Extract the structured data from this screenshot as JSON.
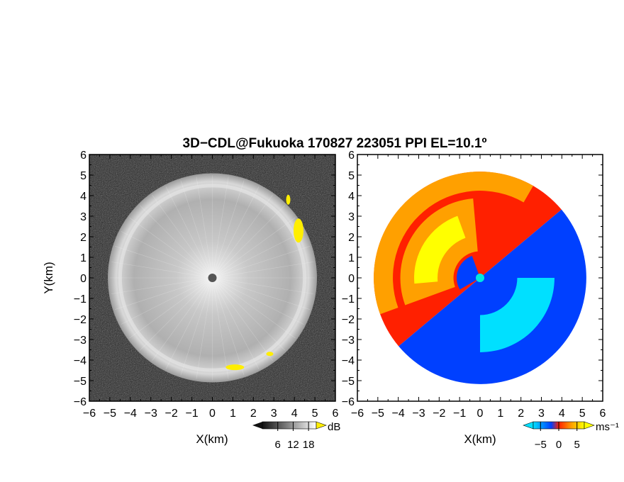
{
  "figure": {
    "title": "3D−CDL@Fukuoka 170827 223051 PPI EL=10.1º"
  },
  "chart_data": [
    {
      "type": "heatmap",
      "panel": "left",
      "field": "reflectivity",
      "xlabel": "X(km)",
      "ylabel": "Y(km)",
      "xlim": [
        -6,
        6
      ],
      "ylim": [
        -6,
        6
      ],
      "x_ticks": [
        "−6",
        "−5",
        "−4",
        "−3",
        "−2",
        "−1",
        "0",
        "1",
        "2",
        "3",
        "4",
        "5",
        "6"
      ],
      "y_ticks": [
        "−6",
        "−5",
        "−4",
        "−3",
        "−2",
        "−1",
        "0",
        "1",
        "2",
        "3",
        "4",
        "5",
        "6"
      ],
      "colorbar": {
        "unit": "dB",
        "ticks": [
          "6",
          "12",
          "18"
        ],
        "tick_values": [
          6,
          12,
          18
        ],
        "range": [
          0,
          21
        ],
        "colors": [
          "#111111",
          "#ffffff"
        ],
        "over_color": "#ffee00"
      },
      "range_circle_radius_km": 5.0,
      "center_marker": {
        "x": 0,
        "y": 0,
        "color": "#555555"
      },
      "highlights": [
        {
          "x": 4.2,
          "y": 2.3,
          "color": "#ffee00"
        },
        {
          "x": 1.1,
          "y": -4.35,
          "color": "#ffee00"
        },
        {
          "x": 2.8,
          "y": -3.7,
          "color": "#ffee00"
        },
        {
          "x": 3.7,
          "y": 3.8,
          "color": "#ffee00"
        }
      ]
    },
    {
      "type": "heatmap",
      "panel": "right",
      "field": "doppler velocity",
      "xlabel": "X(km)",
      "ylabel": "",
      "xlim": [
        -6,
        6
      ],
      "ylim": [
        -6,
        6
      ],
      "x_ticks": [
        "−6",
        "−5",
        "−4",
        "−3",
        "−2",
        "−1",
        "0",
        "1",
        "2",
        "3",
        "4",
        "5",
        "6"
      ],
      "colorbar": {
        "unit": "ms⁻¹",
        "ticks": [
          "−5",
          "0",
          "5"
        ],
        "tick_values": [
          -5,
          0,
          5
        ],
        "range": [
          -7,
          7
        ],
        "colors": [
          "#00e0ff",
          "#0040ff",
          "#ff2000",
          "#ffa000",
          "#ffff00"
        ]
      },
      "range_circle_radius_km": 5.2,
      "center_marker": {
        "x": 0,
        "y": 0,
        "color": "#00e8e0"
      }
    }
  ]
}
